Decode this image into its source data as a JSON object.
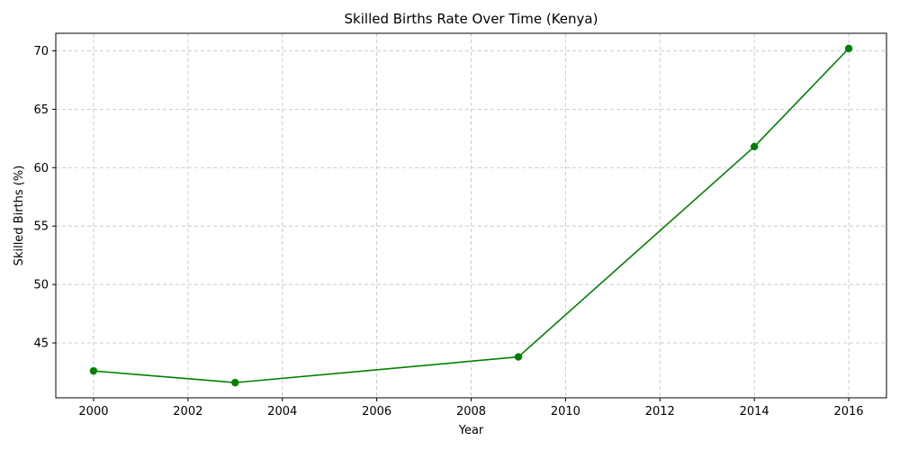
{
  "chart_data": {
    "type": "line",
    "title": "Skilled Births Rate Over Time (Kenya)",
    "xlabel": "Year",
    "ylabel": "Skilled Births (%)",
    "xlim": [
      1999.2,
      2016.8
    ],
    "ylim": [
      40.3,
      71.5
    ],
    "xticks": [
      2000,
      2002,
      2004,
      2006,
      2008,
      2010,
      2012,
      2014,
      2016
    ],
    "yticks": [
      45,
      50,
      55,
      60,
      65,
      70
    ],
    "grid": true,
    "series": [
      {
        "color": "#008000",
        "marker": "circle",
        "x": [
          2000,
          2003,
          2009,
          2014,
          2016
        ],
        "y": [
          42.6,
          41.6,
          43.8,
          61.8,
          70.2
        ]
      }
    ]
  }
}
